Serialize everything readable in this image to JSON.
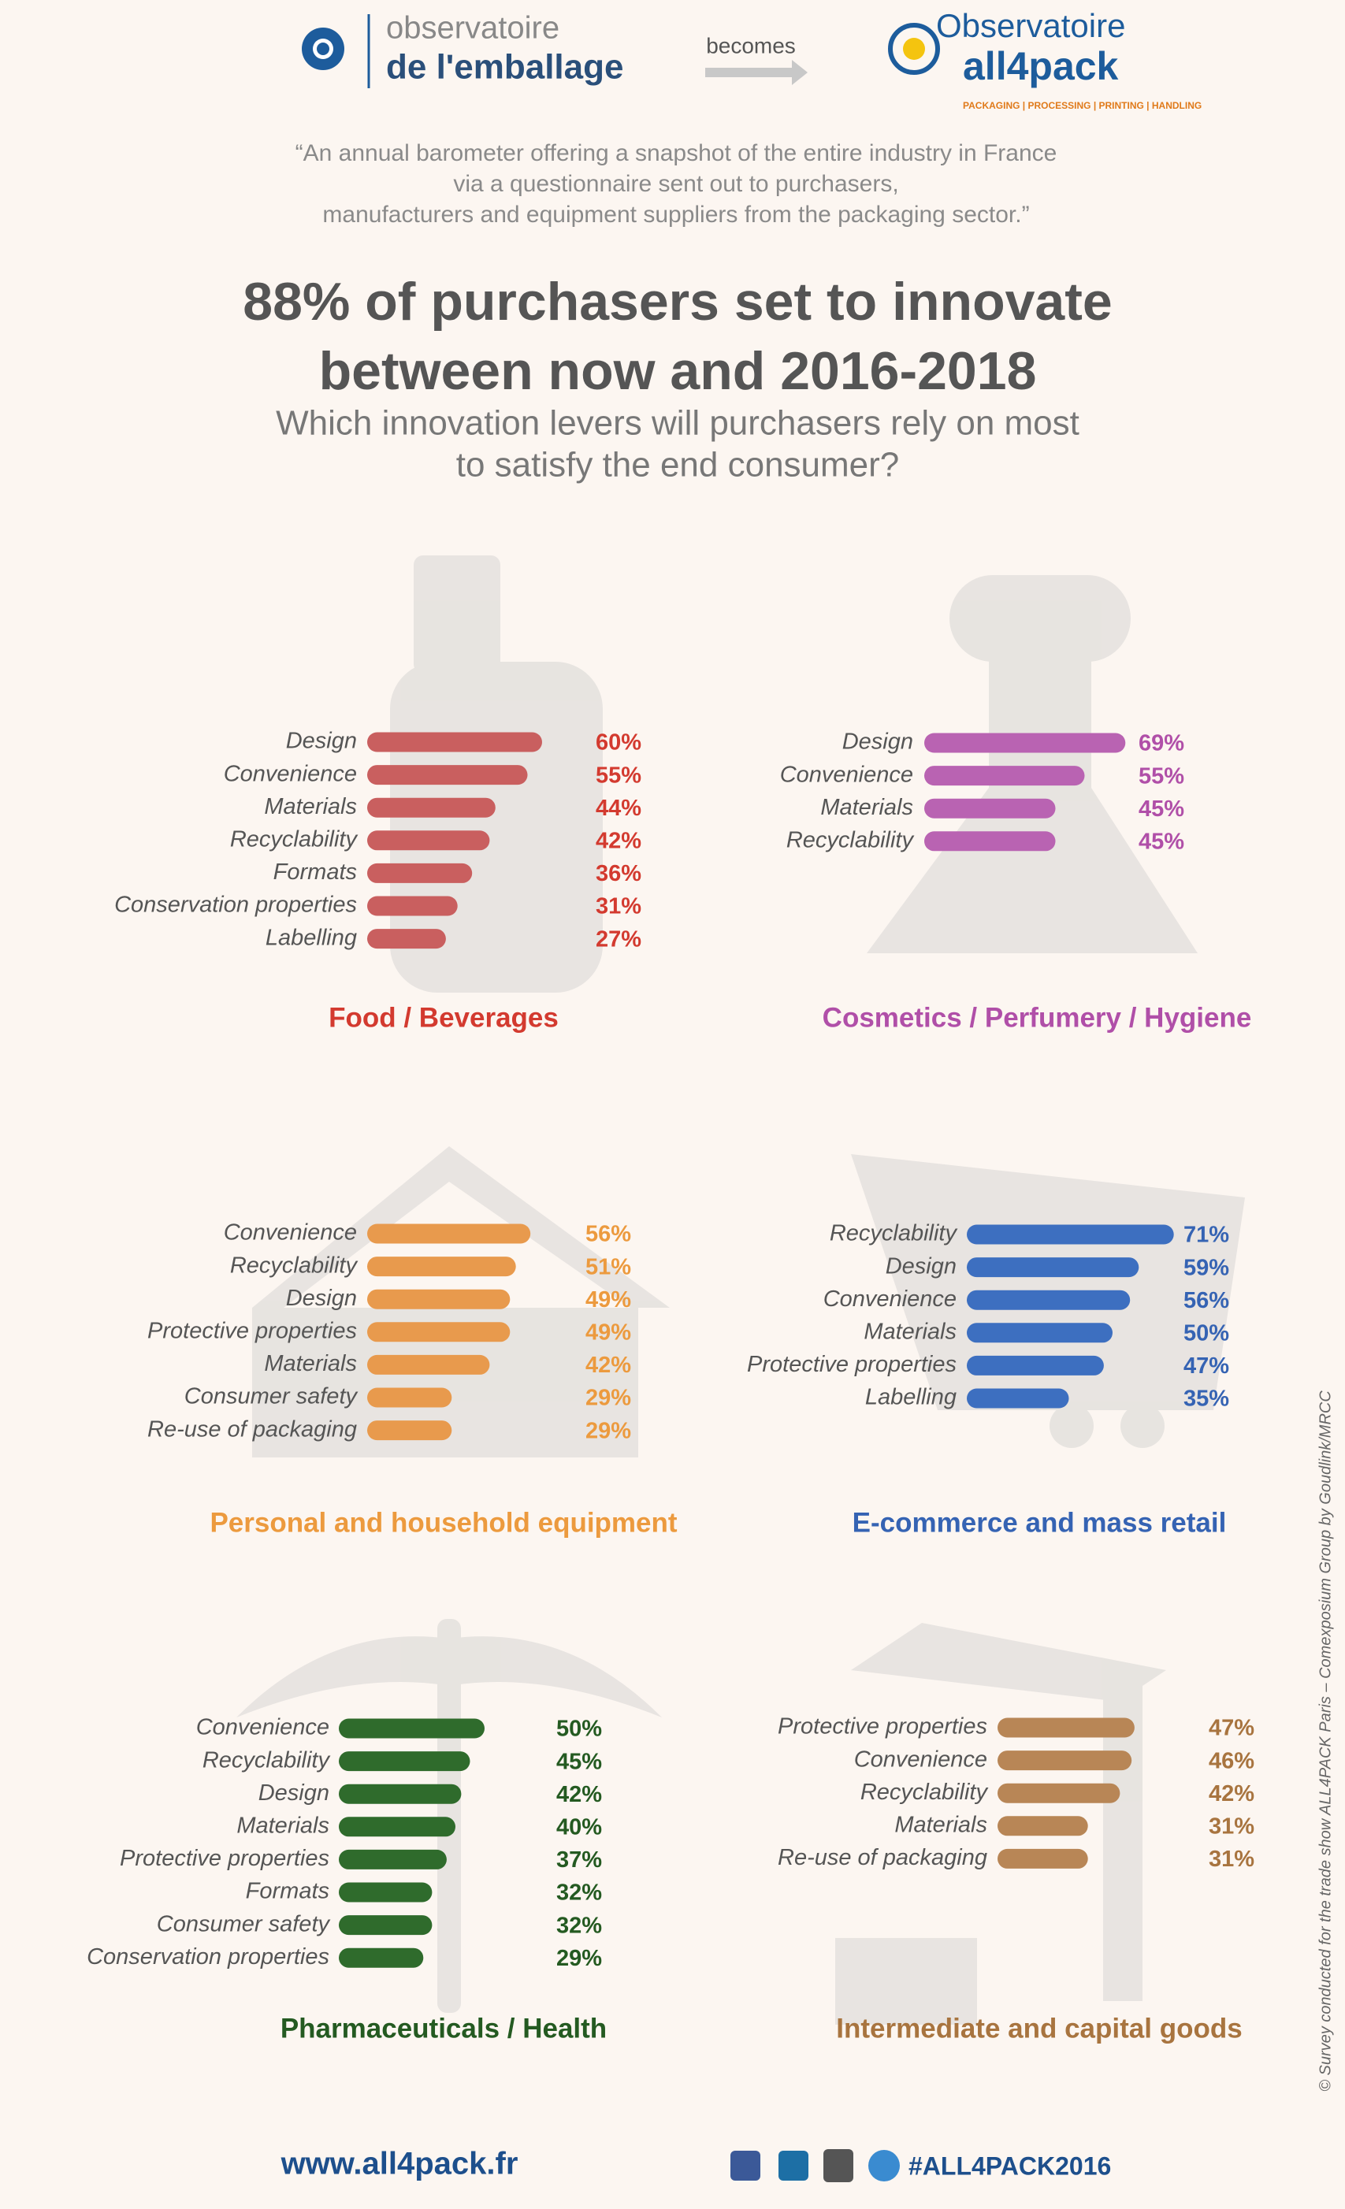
{
  "header": {
    "old_logo_line1": "observatoire",
    "old_logo_line2": "de l'emballage",
    "becomes": "becomes",
    "new_logo_line1": "Observatoire",
    "new_logo_line2": "all4pack",
    "new_logo_tagline": "PACKAGING | PROCESSING | PRINTING | HANDLING"
  },
  "quote": [
    "“An annual barometer offering a snapshot of the entire industry in France",
    "via a questionnaire sent out to purchasers,",
    "manufacturers and equipment suppliers from the packaging sector.”"
  ],
  "headline": [
    "88% of purchasers set to innovate",
    "between now and 2016-2018"
  ],
  "subtitle": [
    "Which innovation levers will purchasers rely on most",
    "to satisfy the end consumer?"
  ],
  "chart_data": [
    {
      "type": "bar",
      "title": "Food / Beverages",
      "color": "#c95f5f",
      "label_color": "#d33a2f",
      "categories": [
        "Design",
        "Convenience",
        "Materials",
        "Recyclability",
        "Formats",
        "Conservation properties",
        "Labelling"
      ],
      "values": [
        60,
        55,
        44,
        42,
        36,
        31,
        27
      ],
      "value_labels": [
        "60%",
        "55%",
        "44%",
        "42%",
        "36%",
        "31%",
        "27%"
      ]
    },
    {
      "type": "bar",
      "title": "Cosmetics / Perfumery / Hygiene",
      "color": "#b963b2",
      "label_color": "#b04fa8",
      "categories": [
        "Design",
        "Convenience",
        "Materials",
        "Recyclability"
      ],
      "values": [
        69,
        55,
        45,
        45
      ],
      "value_labels": [
        "69%",
        "55%",
        "45%",
        "45%"
      ]
    },
    {
      "type": "bar",
      "title": "Personal and household equipment",
      "color": "#e89a4d",
      "label_color": "#ec9a3e",
      "categories": [
        "Convenience",
        "Recyclability",
        "Design",
        "Protective properties",
        "Materials",
        "Consumer safety",
        "Re-use of packaging"
      ],
      "values": [
        56,
        51,
        49,
        49,
        42,
        29,
        29
      ],
      "value_labels": [
        "56%",
        "51%",
        "49%",
        "49%",
        "42%",
        "29%",
        "29%"
      ]
    },
    {
      "type": "bar",
      "title": "E-commerce and mass retail",
      "color": "#3d6fc0",
      "label_color": "#3563b3",
      "categories": [
        "Recyclability",
        "Design",
        "Convenience",
        "Materials",
        "Protective properties",
        "Labelling"
      ],
      "values": [
        71,
        59,
        56,
        50,
        47,
        35
      ],
      "value_labels": [
        "71%",
        "59%",
        "56%",
        "50%",
        "47%",
        "35%"
      ]
    },
    {
      "type": "bar",
      "title": "Pharmaceuticals / Health",
      "color": "#2f6b2c",
      "label_color": "#245a21",
      "categories": [
        "Convenience",
        "Recyclability",
        "Design",
        "Materials",
        "Protective properties",
        "Formats",
        "Consumer safety",
        "Conservation properties"
      ],
      "values": [
        50,
        45,
        42,
        40,
        37,
        32,
        32,
        29
      ],
      "value_labels": [
        "50%",
        "45%",
        "42%",
        "40%",
        "37%",
        "32%",
        "32%",
        "29%"
      ]
    },
    {
      "type": "bar",
      "title": "Intermediate and capital goods",
      "color": "#b88656",
      "label_color": "#a8743f",
      "categories": [
        "Protective properties",
        "Convenience",
        "Recyclability",
        "Materials",
        "Re-use of packaging"
      ],
      "values": [
        47,
        46,
        42,
        31,
        31
      ],
      "value_labels": [
        "47%",
        "46%",
        "42%",
        "31%",
        "31%"
      ]
    }
  ],
  "footer": {
    "url": "www.all4pack.fr",
    "hashtag": "#ALL4PACK2016"
  },
  "credit": "© Survey conducted for the trade show ALL4PACK Paris – Comexposium Group by Goudlink/MRCC"
}
